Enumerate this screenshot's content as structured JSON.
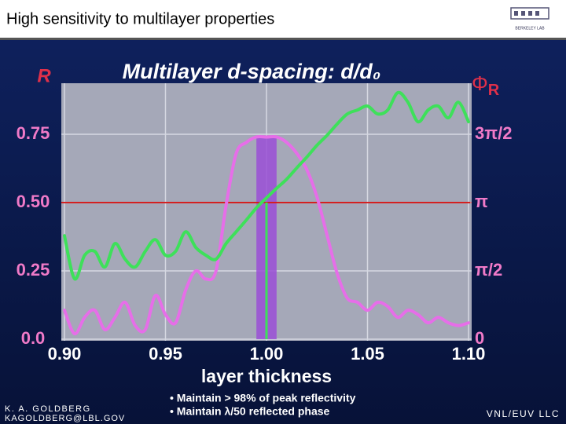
{
  "header": {
    "title": "High sensitivity to multilayer properties",
    "logo_text": "BERKELEY LAB"
  },
  "chart_data": {
    "type": "line",
    "title": "Multilayer d-spacing: d/d₀",
    "ylabel": "R",
    "y2label": "Φ",
    "y2label_sub": "R",
    "xlabel": "layer thickness",
    "x": [
      0.9,
      0.905,
      0.91,
      0.915,
      0.92,
      0.925,
      0.93,
      0.935,
      0.94,
      0.945,
      0.95,
      0.955,
      0.96,
      0.965,
      0.97,
      0.975,
      0.98,
      0.985,
      0.99,
      0.995,
      1.0,
      1.005,
      1.01,
      1.015,
      1.02,
      1.025,
      1.03,
      1.035,
      1.04,
      1.045,
      1.05,
      1.055,
      1.06,
      1.065,
      1.07,
      1.075,
      1.08,
      1.085,
      1.09,
      1.095,
      1.1
    ],
    "series": [
      {
        "color": "#e66ee8",
        "values": [
          0.106,
          0.02,
          0.08,
          0.106,
          0.035,
          0.08,
          0.135,
          0.05,
          0.035,
          0.16,
          0.09,
          0.06,
          0.18,
          0.25,
          0.22,
          0.25,
          0.49,
          0.68,
          0.72,
          0.74,
          0.74,
          0.74,
          0.72,
          0.68,
          0.62,
          0.52,
          0.38,
          0.24,
          0.15,
          0.135,
          0.106,
          0.135,
          0.12,
          0.08,
          0.106,
          0.09,
          0.06,
          0.08,
          0.06,
          0.05,
          0.06
        ]
      },
      {
        "color": "#3ee05a",
        "axis": "y2",
        "values": [
          2.38,
          1.39,
          1.93,
          2.02,
          1.66,
          2.2,
          1.84,
          1.66,
          2.02,
          2.29,
          1.93,
          2.02,
          2.47,
          2.11,
          1.93,
          1.84,
          2.2,
          2.47,
          2.74,
          3.02,
          3.25,
          3.47,
          3.68,
          3.94,
          4.19,
          4.46,
          4.69,
          4.95,
          5.18,
          5.27,
          5.36,
          5.18,
          5.27,
          5.67,
          5.45,
          5.0,
          5.27,
          5.36,
          5.09,
          5.45,
          5.0
        ]
      }
    ],
    "xlim": [
      0.9,
      1.1
    ],
    "xticks": [
      {
        "value": 0.9,
        "label": "0.90"
      },
      0.95,
      {
        "value": 1.0,
        "label": "1.00"
      },
      1.05,
      {
        "value": 1.1,
        "label": "1.10"
      }
    ],
    "ylim": [
      0,
      0.931
    ],
    "yticks": [
      {
        "value": 0,
        "label": "0.0"
      },
      0.25,
      {
        "value": 0.5,
        "label": "0.50"
      },
      0.75
    ],
    "y2lim": [
      0,
      5.85
    ],
    "y2ticks": [
      0,
      {
        "value": 1.5708,
        "label": "π/2"
      },
      {
        "value": 3.1416,
        "label": "π"
      },
      {
        "value": 4.7124,
        "label": "3π/2"
      }
    ],
    "grid": true,
    "hline": {
      "value": 0.5,
      "color": "#d42020"
    },
    "vline": {
      "value": 1.0,
      "color": "#3ee05a"
    },
    "band": {
      "from": 0.995,
      "to": 1.005,
      "color": "#9a4fd6"
    },
    "notes": [
      "• Maintain > 98% of peak reflectivity",
      "• Maintain λ/50 reflected phase"
    ]
  },
  "footer": {
    "author": "K. A. GOLDBERG",
    "email": "KAGOLDBERG@LBL.GOV",
    "org": "VNL/EUV LLC"
  }
}
